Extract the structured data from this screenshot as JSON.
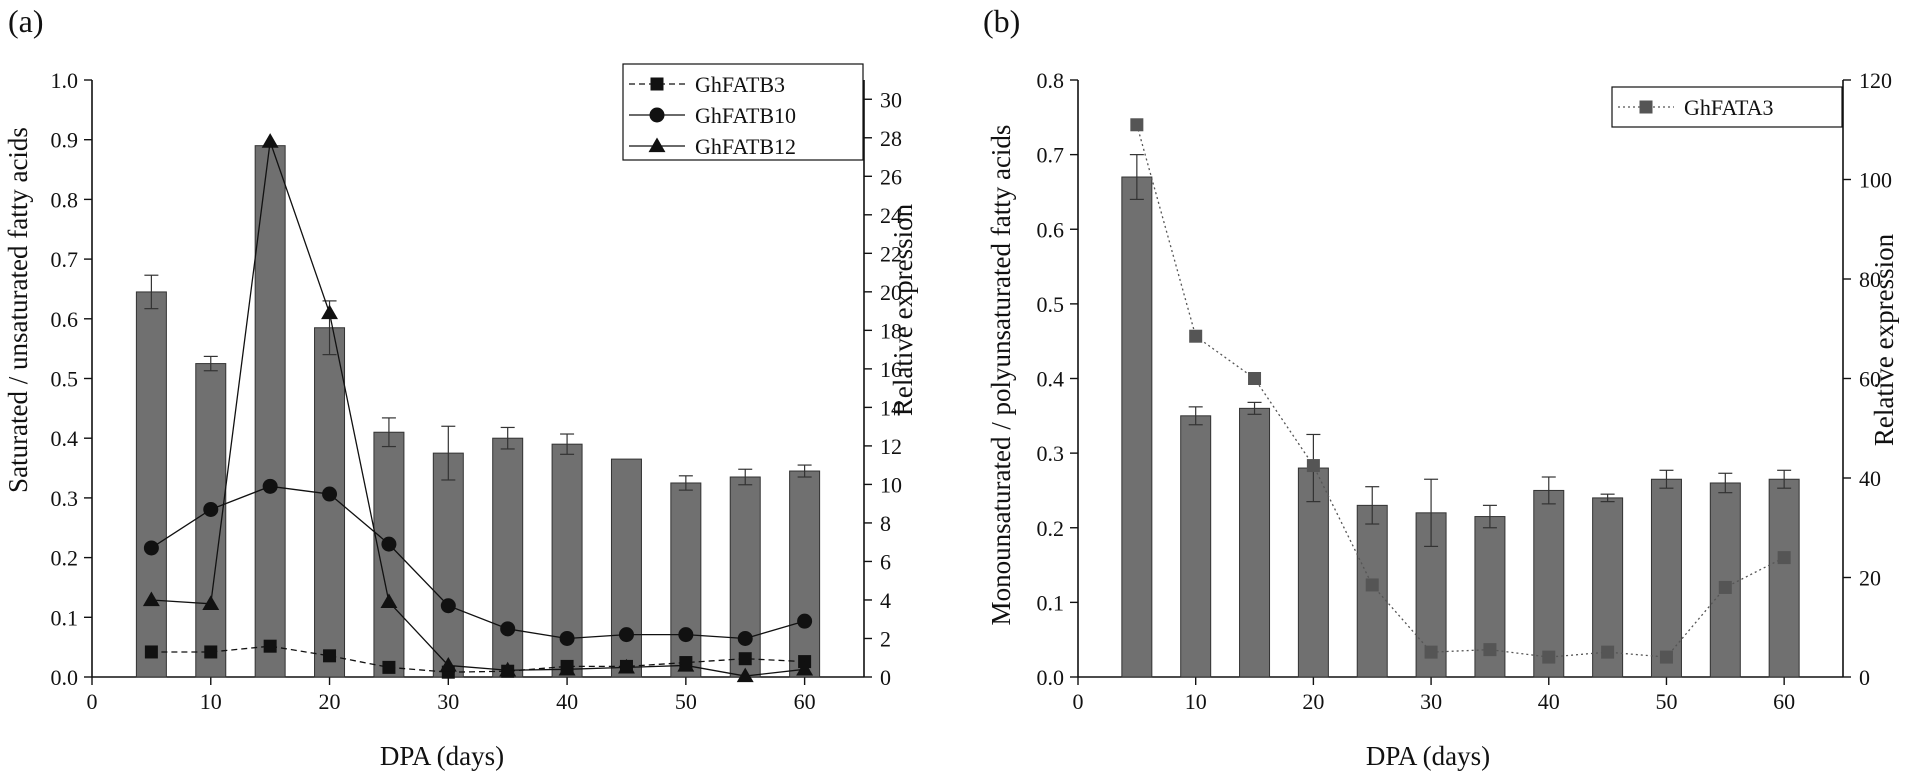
{
  "chart_data": [
    {
      "panel_label": "(a)",
      "type": "bar",
      "xlabel": "DPA (days)",
      "ylabel": "Saturated / unsaturated fatty acids",
      "y2label": "Relative expression",
      "xlim": [
        0,
        65
      ],
      "xticks": [
        "0",
        "10",
        "20",
        "30",
        "40",
        "50",
        "60"
      ],
      "xtick_values": [
        0,
        10,
        20,
        30,
        40,
        50,
        60
      ],
      "ylim": [
        0,
        1.0
      ],
      "yticks": [
        "0.0",
        "0.1",
        "0.2",
        "0.3",
        "0.4",
        "0.5",
        "0.6",
        "0.7",
        "0.8",
        "0.9",
        "1.0"
      ],
      "ytick_values": [
        0,
        0.1,
        0.2,
        0.3,
        0.4,
        0.5,
        0.6,
        0.7,
        0.8,
        0.9,
        1.0
      ],
      "y2lim": [
        0,
        31
      ],
      "y2ticks": [
        "0",
        "2",
        "4",
        "6",
        "8",
        "10",
        "12",
        "14",
        "16",
        "18",
        "20",
        "22",
        "24",
        "26",
        "28",
        "30"
      ],
      "y2tick_values": [
        0,
        2,
        4,
        6,
        8,
        10,
        12,
        14,
        16,
        18,
        20,
        22,
        24,
        26,
        28,
        30
      ],
      "bars": {
        "x": [
          5,
          10,
          15,
          20,
          25,
          30,
          35,
          40,
          45,
          50,
          55,
          60
        ],
        "values": [
          0.645,
          0.525,
          0.89,
          0.585,
          0.41,
          0.375,
          0.4,
          0.39,
          0.365,
          0.325,
          0.335,
          0.345
        ],
        "errors": [
          0.028,
          0.012,
          0.0,
          0.045,
          0.024,
          0.045,
          0.018,
          0.017,
          0.0,
          0.012,
          0.013,
          0.01
        ],
        "color": "#707070"
      },
      "legend_position": "top-right",
      "series": [
        {
          "name": "GhFATB3",
          "marker": "square",
          "line": "dashed",
          "x": [
            5,
            10,
            15,
            20,
            25,
            30,
            35,
            40,
            45,
            50,
            55,
            60
          ],
          "values": [
            1.3,
            1.3,
            1.6,
            1.1,
            0.5,
            0.25,
            0.3,
            0.55,
            0.55,
            0.75,
            0.95,
            0.8
          ]
        },
        {
          "name": "GhFATB10",
          "marker": "circle",
          "line": "solid",
          "x": [
            5,
            10,
            15,
            20,
            25,
            30,
            35,
            40,
            45,
            50,
            55,
            60
          ],
          "values": [
            6.7,
            8.7,
            9.9,
            9.5,
            6.9,
            3.7,
            2.5,
            2.0,
            2.2,
            2.2,
            2.0,
            2.9
          ]
        },
        {
          "name": "GhFATB12",
          "marker": "triangle",
          "line": "solid",
          "x": [
            5,
            10,
            15,
            20,
            25,
            30,
            35,
            40,
            45,
            50,
            55,
            60
          ],
          "values": [
            4.0,
            3.8,
            27.8,
            18.9,
            3.9,
            0.6,
            0.35,
            0.4,
            0.5,
            0.6,
            0.05,
            0.4
          ]
        }
      ]
    },
    {
      "panel_label": "(b)",
      "type": "bar",
      "xlabel": "DPA (days)",
      "ylabel": "Monounsaturated / polyunsaturated fatty acids",
      "y2label": "Relative expression",
      "xlim": [
        0,
        65
      ],
      "xticks": [
        "0",
        "10",
        "20",
        "30",
        "40",
        "50",
        "60"
      ],
      "xtick_values": [
        0,
        10,
        20,
        30,
        40,
        50,
        60
      ],
      "ylim": [
        0,
        0.8
      ],
      "yticks": [
        "0.0",
        "0.1",
        "0.2",
        "0.3",
        "0.4",
        "0.5",
        "0.6",
        "0.7",
        "0.8"
      ],
      "ytick_values": [
        0,
        0.1,
        0.2,
        0.3,
        0.4,
        0.5,
        0.6,
        0.7,
        0.8
      ],
      "y2lim": [
        0,
        120
      ],
      "y2ticks": [
        "0",
        "20",
        "40",
        "60",
        "80",
        "100",
        "120"
      ],
      "y2tick_values": [
        0,
        20,
        40,
        60,
        80,
        100,
        120
      ],
      "bars": {
        "x": [
          5,
          10,
          15,
          20,
          25,
          30,
          35,
          40,
          45,
          50,
          55,
          60
        ],
        "values": [
          0.67,
          0.35,
          0.36,
          0.28,
          0.23,
          0.22,
          0.215,
          0.25,
          0.24,
          0.265,
          0.26,
          0.265
        ],
        "errors": [
          0.03,
          0.012,
          0.008,
          0.045,
          0.025,
          0.045,
          0.015,
          0.018,
          0.005,
          0.012,
          0.013,
          0.012
        ],
        "color": "#707070"
      },
      "legend_position": "top-right",
      "series": [
        {
          "name": "GhFATA3",
          "marker": "square",
          "line": "dotted",
          "x": [
            5,
            10,
            15,
            20,
            25,
            30,
            35,
            40,
            45,
            50,
            55,
            60
          ],
          "values": [
            111,
            68.5,
            60,
            42.5,
            18.5,
            5,
            5.5,
            4,
            5,
            4,
            18,
            24
          ]
        }
      ]
    }
  ]
}
